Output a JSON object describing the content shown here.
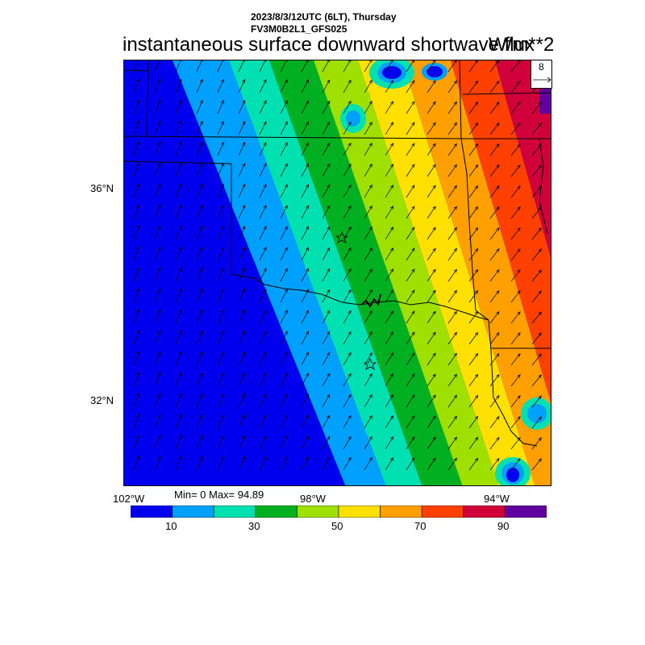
{
  "header": {
    "datetime": "2023/8/3/12UTC (6LT), Thursday",
    "model": "FV3M0B2L1_GFS025",
    "title": "instantaneous surface downward shortwave flux",
    "units": "W/m**2"
  },
  "reference_vector": {
    "value": "8"
  },
  "map": {
    "lat_labels": [
      "36°N",
      "32°N"
    ],
    "lon_labels": [
      "102°W",
      "98°W",
      "94°W"
    ],
    "stats": "Min= 0 Max= 94.89",
    "stars": [
      "star-marker-north",
      "star-marker-south"
    ],
    "field_bands": [
      {
        "range": "0-10",
        "color": "#0000ee"
      },
      {
        "range": "10-20",
        "color": "#00a0ff"
      },
      {
        "range": "20-30",
        "color": "#00e0b0"
      },
      {
        "range": "30-40",
        "color": "#00b020"
      },
      {
        "range": "40-50",
        "color": "#a0e000"
      },
      {
        "range": "50-60",
        "color": "#ffe000"
      },
      {
        "range": "60-70",
        "color": "#ffa000"
      },
      {
        "range": "70-80",
        "color": "#ff4000"
      },
      {
        "range": "80-90",
        "color": "#d0003a"
      },
      {
        "range": "90-100",
        "color": "#6000a0"
      }
    ],
    "wind_direction": "from south-southwest"
  },
  "colorbar": {
    "colors": [
      "#0000ee",
      "#00a0ff",
      "#00e0b0",
      "#00b020",
      "#a0e000",
      "#ffe000",
      "#ffa000",
      "#ff4000",
      "#d0003a",
      "#6000a0"
    ],
    "labels": [
      "10",
      "30",
      "50",
      "70",
      "90"
    ]
  }
}
